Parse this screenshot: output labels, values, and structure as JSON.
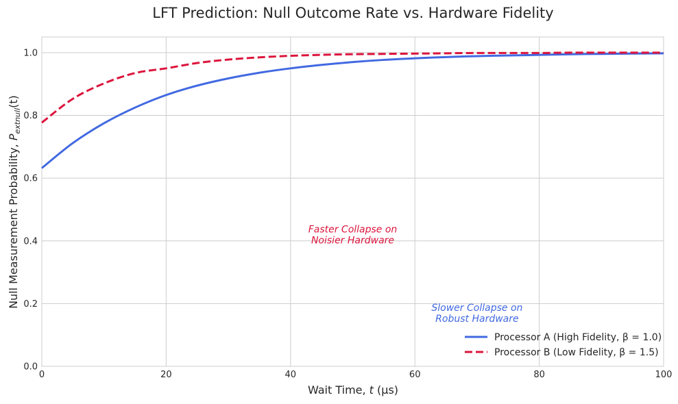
{
  "chart_data": {
    "type": "line",
    "title": "LFT Prediction: Null Outcome Rate vs. Hardware Fidelity",
    "xlabel_prefix": "Wait Time, ",
    "xlabel_var": "t",
    "xlabel_suffix": " (μs)",
    "ylabel_prefix": "Null Measurement Probability, ",
    "ylabel_var": "P",
    "ylabel_sub": "extnull",
    "ylabel_arg": "(t)",
    "xlim": [
      0,
      100
    ],
    "ylim": [
      0,
      1.05
    ],
    "x_ticks": [
      0,
      20,
      40,
      60,
      80,
      100
    ],
    "x_tick_labels": [
      "0",
      "20",
      "40",
      "60",
      "80",
      "100"
    ],
    "y_ticks": [
      0,
      0.2,
      0.4,
      0.6,
      0.8,
      1.0
    ],
    "y_tick_labels": [
      "0.0",
      "0.2",
      "0.4",
      "0.6",
      "0.8",
      "1.0"
    ],
    "grid": true,
    "legend_position": "bottom-right",
    "series": [
      {
        "name": "Processor A (High Fidelity, β = 1.0)",
        "color": "#4169e1",
        "style": "solid",
        "x": [
          0,
          5,
          10,
          15,
          20,
          25,
          30,
          35,
          40,
          45,
          50,
          55,
          60,
          65,
          70,
          75,
          80,
          85,
          90,
          95,
          100
        ],
        "y": [
          0.632,
          0.712,
          0.775,
          0.825,
          0.865,
          0.895,
          0.918,
          0.936,
          0.95,
          0.961,
          0.97,
          0.977,
          0.982,
          0.986,
          0.989,
          0.991,
          0.993,
          0.995,
          0.996,
          0.997,
          0.998
        ]
      },
      {
        "name": "Processor B (Low Fidelity, β = 1.5)",
        "color": "#dc143c",
        "style": "dashed",
        "x": [
          0,
          5,
          10,
          15,
          20,
          25,
          30,
          35,
          40,
          45,
          50,
          55,
          60,
          65,
          70,
          75,
          80,
          85,
          90,
          95,
          100
        ],
        "y": [
          0.777,
          0.853,
          0.902,
          0.935,
          0.95,
          0.967,
          0.978,
          0.985,
          0.99,
          0.993,
          0.995,
          0.996,
          0.997,
          0.998,
          0.999,
          0.999,
          0.999,
          1.0,
          1.0,
          1.0,
          1.0
        ]
      }
    ],
    "annotations": [
      {
        "lines": [
          "Faster Collapse on",
          "Noisier Hardware"
        ],
        "x": 50,
        "y": 0.42,
        "color": "#dc143c"
      },
      {
        "lines": [
          "Slower Collapse on",
          "Robust Hardware"
        ],
        "x": 70,
        "y": 0.17,
        "color": "#4169e1"
      }
    ]
  }
}
